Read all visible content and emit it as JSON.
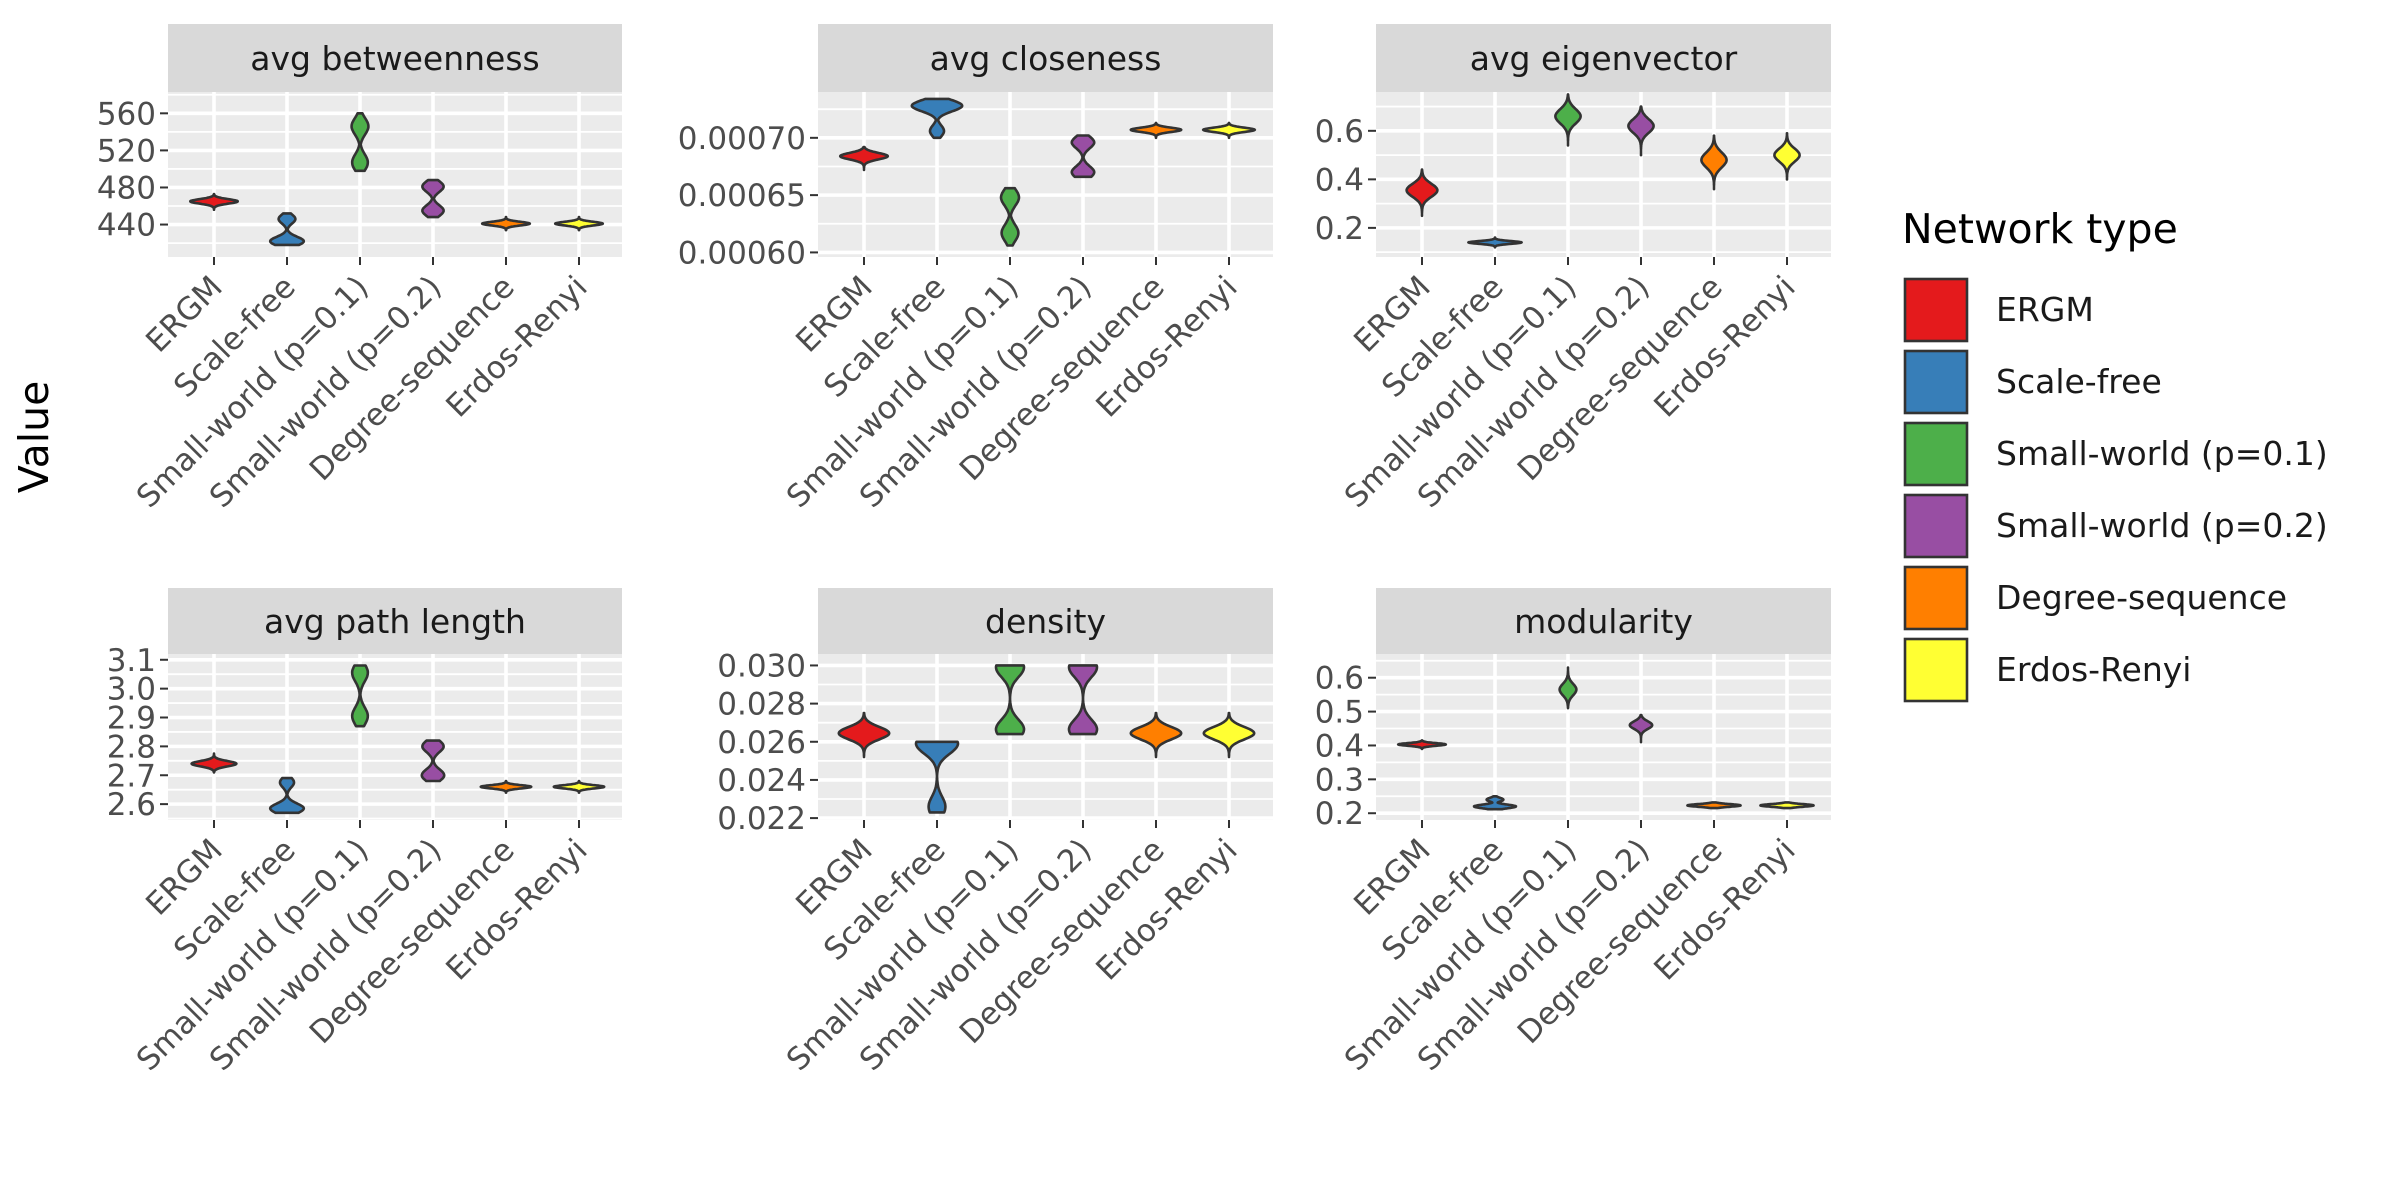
{
  "figure": {
    "ylabel": "Value",
    "legend_title": "Network type",
    "legend_position": "right"
  },
  "categories": [
    "ERGM",
    "Scale-free",
    "Small-world (p=0.1)",
    "Small-world (p=0.2)",
    "Degree-sequence",
    "Erdos-Renyi"
  ],
  "colors": {
    "ERGM": "#e41a1c",
    "Scale-free": "#377eb8",
    "Small-world (p=0.1)": "#4daf4a",
    "Small-world (p=0.2)": "#984ea3",
    "Degree-sequence": "#ff7f00",
    "Erdos-Renyi": "#ffff33",
    "panel_background": "#ebebeb",
    "strip_background": "#d9d9d9",
    "grid": "#ffffff",
    "outline": "#333333"
  },
  "chart_data": [
    {
      "type": "violin",
      "title": "avg betweenness",
      "ylim": [
        405,
        583
      ],
      "yticks": [
        440,
        480,
        520,
        560
      ],
      "ytick_labels": [
        "440",
        "480",
        "520",
        "560"
      ],
      "series": [
        {
          "name": "ERGM",
          "min": 456,
          "max": 473,
          "modes": [
            {
              "y": 465,
              "w": 0.85
            }
          ]
        },
        {
          "name": "Scale-free",
          "min": 418,
          "max": 452,
          "modes": [
            {
              "y": 422,
              "w": 0.6
            },
            {
              "y": 446,
              "w": 0.3
            }
          ]
        },
        {
          "name": "Small-world (p=0.1)",
          "min": 498,
          "max": 560,
          "modes": [
            {
              "y": 507,
              "w": 0.28
            },
            {
              "y": 546,
              "w": 0.3
            }
          ]
        },
        {
          "name": "Small-world (p=0.2)",
          "min": 448,
          "max": 488,
          "modes": [
            {
              "y": 455,
              "w": 0.38
            },
            {
              "y": 481,
              "w": 0.38
            }
          ]
        },
        {
          "name": "Degree-sequence",
          "min": 434,
          "max": 448,
          "modes": [
            {
              "y": 441,
              "w": 0.85
            }
          ]
        },
        {
          "name": "Erdos-Renyi",
          "min": 434,
          "max": 448,
          "modes": [
            {
              "y": 441,
              "w": 0.85
            }
          ]
        }
      ]
    },
    {
      "type": "violin",
      "title": "avg closeness",
      "ylim": [
        0.000596,
        0.00074
      ],
      "yticks": [
        0.0006,
        0.00065,
        0.0007
      ],
      "ytick_labels": [
        "0.00060",
        "0.00065",
        "0.00070"
      ],
      "series": [
        {
          "name": "ERGM",
          "min": 0.000672,
          "max": 0.000692,
          "modes": [
            {
              "y": 0.000684,
              "w": 0.85
            }
          ]
        },
        {
          "name": "Scale-free",
          "min": 0.0007,
          "max": 0.000734,
          "modes": [
            {
              "y": 0.000706,
              "w": 0.25
            },
            {
              "y": 0.000728,
              "w": 0.9
            }
          ]
        },
        {
          "name": "Small-world (p=0.1)",
          "min": 0.000606,
          "max": 0.000656,
          "modes": [
            {
              "y": 0.000617,
              "w": 0.3
            },
            {
              "y": 0.000648,
              "w": 0.32
            }
          ]
        },
        {
          "name": "Small-world (p=0.2)",
          "min": 0.000666,
          "max": 0.000702,
          "modes": [
            {
              "y": 0.00067,
              "w": 0.4
            },
            {
              "y": 0.000696,
              "w": 0.4
            }
          ]
        },
        {
          "name": "Degree-sequence",
          "min": 0.0007,
          "max": 0.000713,
          "modes": [
            {
              "y": 0.000707,
              "w": 0.9
            }
          ]
        },
        {
          "name": "Erdos-Renyi",
          "min": 0.0007,
          "max": 0.000713,
          "modes": [
            {
              "y": 0.000707,
              "w": 0.92
            }
          ]
        }
      ]
    },
    {
      "type": "violin",
      "title": "avg eigenvector",
      "ylim": [
        0.08,
        0.76
      ],
      "yticks": [
        0.2,
        0.4,
        0.6
      ],
      "ytick_labels": [
        "0.2",
        "0.4",
        "0.6"
      ],
      "series": [
        {
          "name": "ERGM",
          "min": 0.25,
          "max": 0.44,
          "modes": [
            {
              "y": 0.355,
              "w": 0.55
            }
          ]
        },
        {
          "name": "Scale-free",
          "min": 0.12,
          "max": 0.16,
          "modes": [
            {
              "y": 0.14,
              "w": 0.95
            }
          ]
        },
        {
          "name": "Small-world (p=0.1)",
          "min": 0.54,
          "max": 0.75,
          "modes": [
            {
              "y": 0.66,
              "w": 0.45
            }
          ]
        },
        {
          "name": "Small-world (p=0.2)",
          "min": 0.5,
          "max": 0.7,
          "modes": [
            {
              "y": 0.62,
              "w": 0.45
            }
          ]
        },
        {
          "name": "Degree-sequence",
          "min": 0.36,
          "max": 0.58,
          "modes": [
            {
              "y": 0.48,
              "w": 0.45
            }
          ]
        },
        {
          "name": "Erdos-Renyi",
          "min": 0.4,
          "max": 0.59,
          "modes": [
            {
              "y": 0.5,
              "w": 0.45
            }
          ]
        }
      ]
    },
    {
      "type": "violin",
      "title": "avg path length",
      "ylim": [
        2.545,
        3.12
      ],
      "yticks": [
        2.6,
        2.7,
        2.8,
        2.9,
        3.0,
        3.1
      ],
      "ytick_labels": [
        "2.6",
        "2.7",
        "2.8",
        "2.9",
        "3.0",
        "3.1"
      ],
      "series": [
        {
          "name": "ERGM",
          "min": 2.71,
          "max": 2.775,
          "modes": [
            {
              "y": 2.74,
              "w": 0.8
            }
          ]
        },
        {
          "name": "Scale-free",
          "min": 2.57,
          "max": 2.69,
          "modes": [
            {
              "y": 2.585,
              "w": 0.6
            },
            {
              "y": 2.675,
              "w": 0.25
            }
          ]
        },
        {
          "name": "Small-world (p=0.1)",
          "min": 2.87,
          "max": 3.08,
          "modes": [
            {
              "y": 2.905,
              "w": 0.28
            },
            {
              "y": 3.055,
              "w": 0.28
            }
          ]
        },
        {
          "name": "Small-world (p=0.2)",
          "min": 2.68,
          "max": 2.82,
          "modes": [
            {
              "y": 2.7,
              "w": 0.4
            },
            {
              "y": 2.8,
              "w": 0.38
            }
          ]
        },
        {
          "name": "Degree-sequence",
          "min": 2.64,
          "max": 2.68,
          "modes": [
            {
              "y": 2.66,
              "w": 0.9
            }
          ]
        },
        {
          "name": "Erdos-Renyi",
          "min": 2.64,
          "max": 2.68,
          "modes": [
            {
              "y": 2.66,
              "w": 0.9
            }
          ]
        }
      ]
    },
    {
      "type": "violin",
      "title": "density",
      "ylim": [
        0.0219,
        0.0306
      ],
      "yticks": [
        0.022,
        0.024,
        0.026,
        0.028,
        0.03
      ],
      "ytick_labels": [
        "0.022",
        "0.024",
        "0.026",
        "0.028",
        "0.030"
      ],
      "series": [
        {
          "name": "ERGM",
          "min": 0.0252,
          "max": 0.0275,
          "modes": [
            {
              "y": 0.02645,
              "w": 0.9
            }
          ]
        },
        {
          "name": "Scale-free",
          "min": 0.0223,
          "max": 0.026,
          "modes": [
            {
              "y": 0.0226,
              "w": 0.3
            },
            {
              "y": 0.0259,
              "w": 0.75
            }
          ]
        },
        {
          "name": "Small-world (p=0.1)",
          "min": 0.0264,
          "max": 0.03,
          "modes": [
            {
              "y": 0.02665,
              "w": 0.5
            },
            {
              "y": 0.0299,
              "w": 0.5
            }
          ]
        },
        {
          "name": "Small-world (p=0.2)",
          "min": 0.0264,
          "max": 0.03,
          "modes": [
            {
              "y": 0.02665,
              "w": 0.5
            },
            {
              "y": 0.0299,
              "w": 0.5
            }
          ]
        },
        {
          "name": "Degree-sequence",
          "min": 0.0252,
          "max": 0.0275,
          "modes": [
            {
              "y": 0.02645,
              "w": 0.9
            }
          ]
        },
        {
          "name": "Erdos-Renyi",
          "min": 0.0252,
          "max": 0.0275,
          "modes": [
            {
              "y": 0.02645,
              "w": 0.9
            }
          ]
        }
      ]
    },
    {
      "type": "violin",
      "title": "modularity",
      "ylim": [
        0.18,
        0.67
      ],
      "yticks": [
        0.2,
        0.3,
        0.4,
        0.5,
        0.6
      ],
      "ytick_labels": [
        "0.2",
        "0.3",
        "0.4",
        "0.5",
        "0.6"
      ],
      "series": [
        {
          "name": "ERGM",
          "min": 0.39,
          "max": 0.415,
          "modes": [
            {
              "y": 0.403,
              "w": 0.85
            }
          ]
        },
        {
          "name": "Scale-free",
          "min": 0.212,
          "max": 0.25,
          "modes": [
            {
              "y": 0.22,
              "w": 0.75
            },
            {
              "y": 0.24,
              "w": 0.3
            }
          ]
        },
        {
          "name": "Small-world (p=0.1)",
          "min": 0.51,
          "max": 0.63,
          "modes": [
            {
              "y": 0.565,
              "w": 0.3
            }
          ]
        },
        {
          "name": "Small-world (p=0.2)",
          "min": 0.41,
          "max": 0.49,
          "modes": [
            {
              "y": 0.46,
              "w": 0.4
            }
          ]
        },
        {
          "name": "Degree-sequence",
          "min": 0.215,
          "max": 0.232,
          "modes": [
            {
              "y": 0.223,
              "w": 0.95
            }
          ]
        },
        {
          "name": "Erdos-Renyi",
          "min": 0.215,
          "max": 0.232,
          "modes": [
            {
              "y": 0.223,
              "w": 0.95
            }
          ]
        }
      ]
    }
  ]
}
